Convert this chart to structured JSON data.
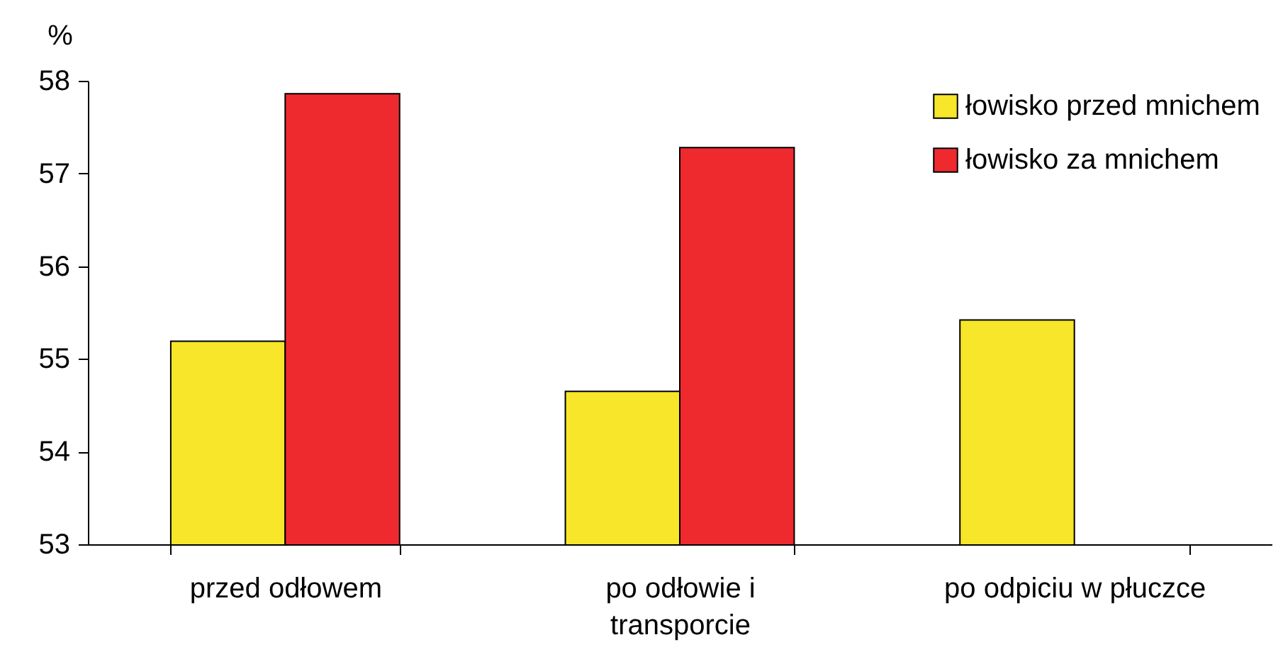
{
  "chart_data": {
    "type": "bar",
    "ylabel": "%",
    "categories": [
      "przed odłowem",
      "po odłowie i transporcie",
      "po odpiciu w płuczce"
    ],
    "series": [
      {
        "name": "łowisko przed mnichem",
        "color": "#f7e629",
        "values": [
          55.19,
          54.65,
          55.42
        ]
      },
      {
        "name": "łowisko za mnichem",
        "color": "#ee2a2f",
        "values": [
          57.86,
          57.28,
          null
        ]
      }
    ],
    "ylim": [
      53,
      58
    ],
    "yticks": [
      53,
      54,
      55,
      56,
      57,
      58
    ],
    "legend": "top right"
  }
}
